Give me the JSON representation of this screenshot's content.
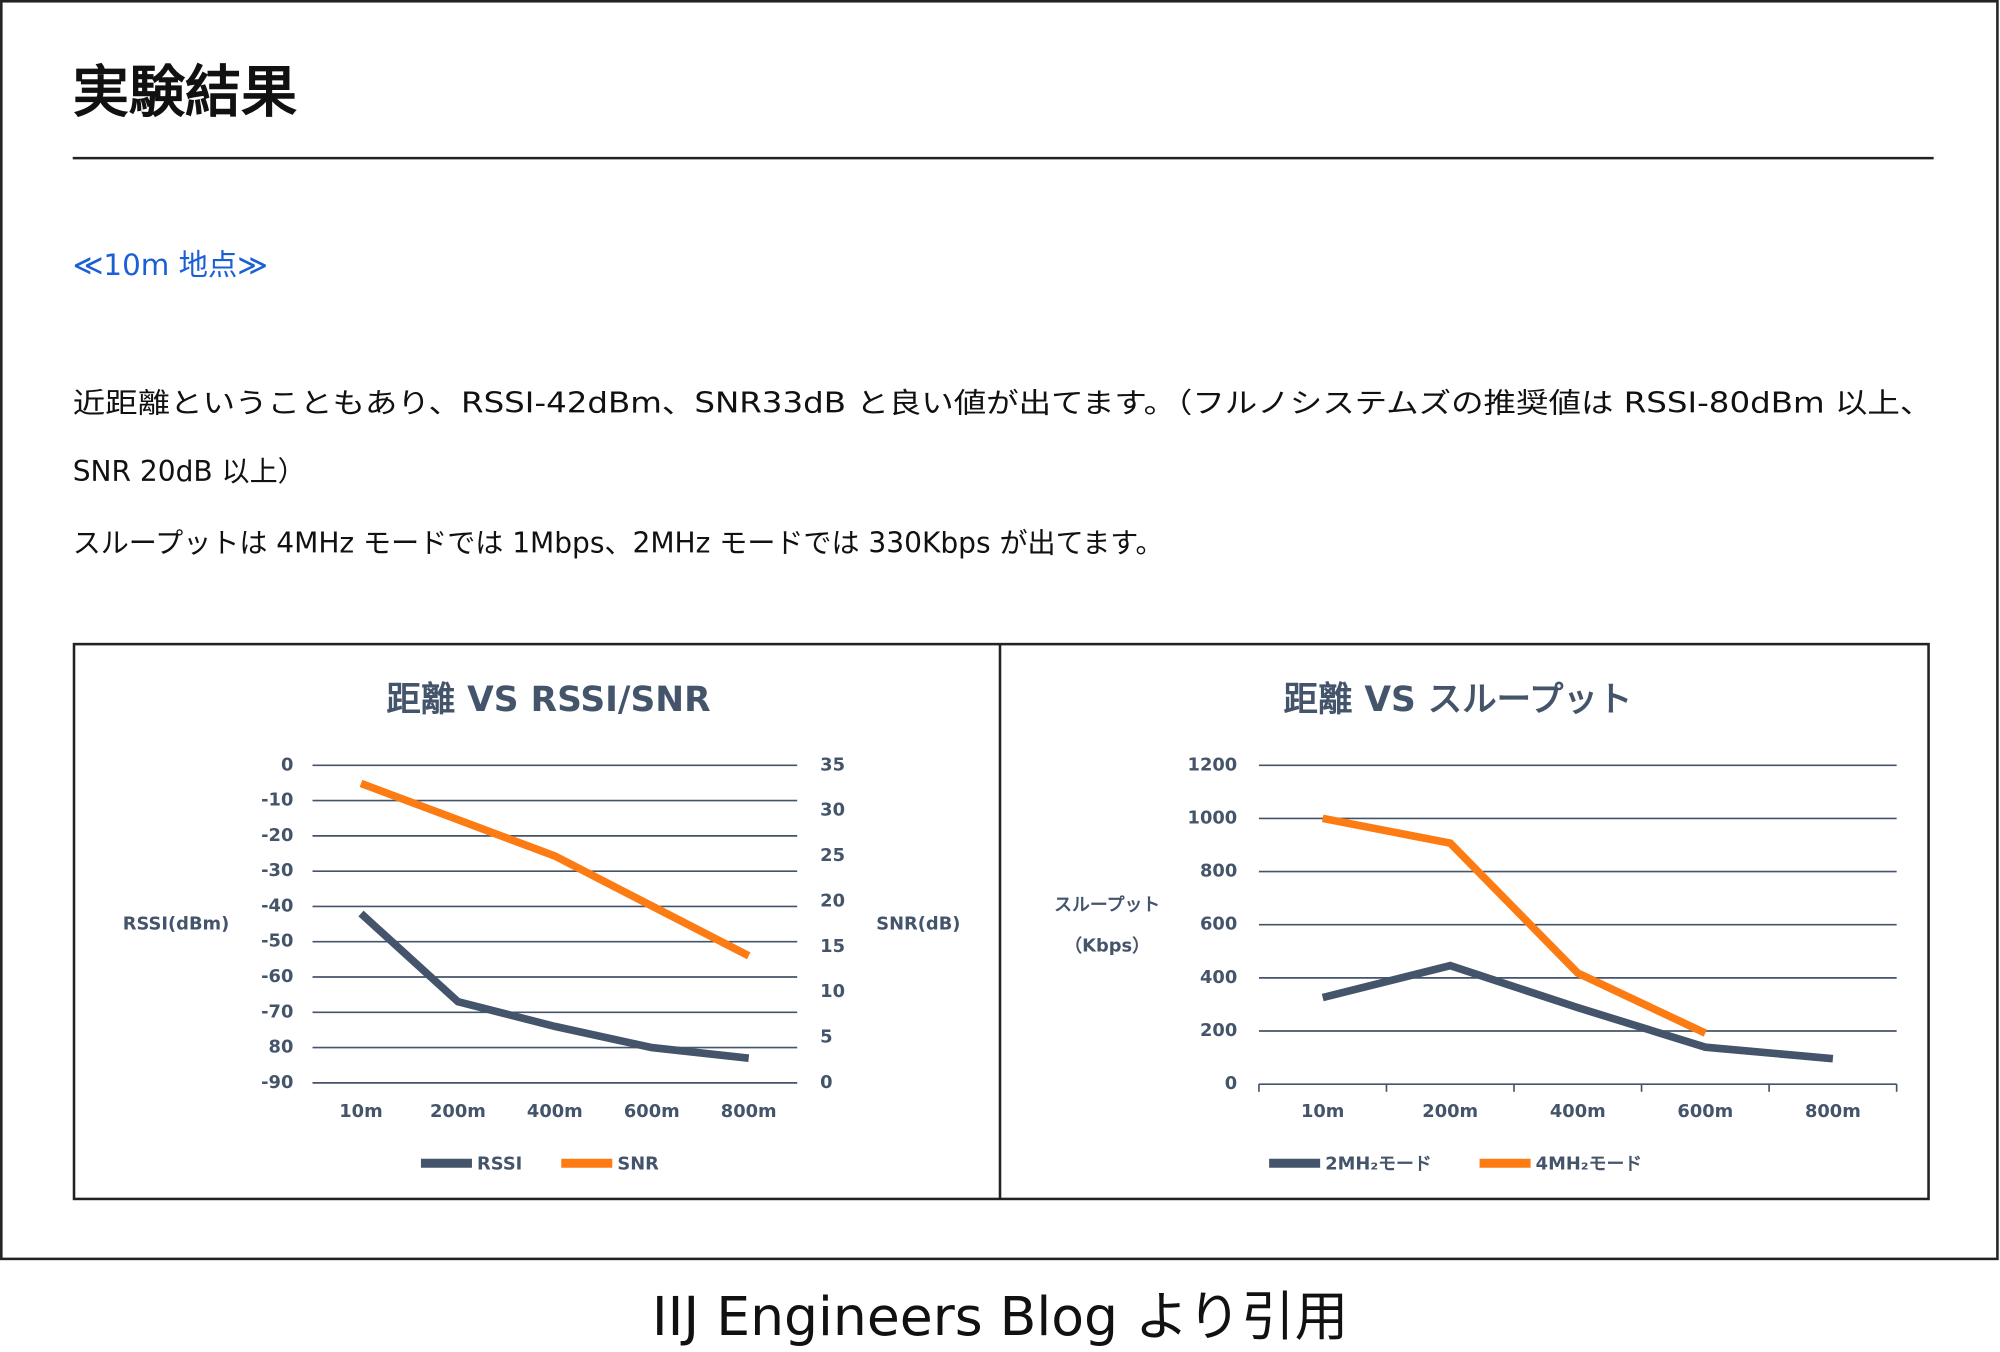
{
  "document": {
    "title": "実験結果",
    "subtitle": "≪10m 地点≫",
    "lines": [
      "近距離ということもあり、RSSI-42dBm、SNR33dB と良い値が出てます。（フルノシステムズの推奨値は RSSI-80dBm 以上、",
      "SNR 20dB 以上）",
      "スループットは 4MHz モードでは 1Mbps、2MHz モードでは 330Kbps が出てます。"
    ],
    "caption": "IIJ Engineers Blog より引用"
  },
  "chart_data": [
    {
      "type": "line",
      "title": "距離 VS RSSI/SNR",
      "ylabel": [
        "RSSI(dBm)"
      ],
      "y2label": "SNR(dB)",
      "categories": [
        "10m",
        "200m",
        "400m",
        "600m",
        "800m"
      ],
      "ylim": [
        -90,
        0
      ],
      "yticks": [
        0,
        -10,
        -20,
        -30,
        -40,
        -50,
        -60,
        -70,
        {
          "value": -80,
          "label": "80"
        },
        -90
      ],
      "y2lim": [
        0,
        35
      ],
      "y2ticks": [
        35,
        30,
        25,
        20,
        15,
        10,
        5,
        0
      ],
      "grid": true,
      "series": [
        {
          "name": "RSSI",
          "color": "#44546a",
          "values": [
            -42,
            -67,
            -74,
            -80,
            -83
          ]
        },
        {
          "name": "SNR",
          "color": "#fd7b13",
          "axis": "y2",
          "values": [
            33,
            29,
            25,
            19.5,
            14
          ]
        }
      ]
    },
    {
      "type": "line",
      "title": "距離 VS スループット",
      "ylabel": [
        "スループット",
        "（Kbps）"
      ],
      "categories": [
        "10m",
        "200m",
        "400m",
        "600m",
        "800m"
      ],
      "ylim": [
        0,
        1200
      ],
      "yticks": [
        1200,
        1000,
        800,
        600,
        400,
        200,
        0
      ],
      "grid": true,
      "series": [
        {
          "name": "2MH₂モード",
          "color": "#44546a",
          "values": [
            326,
            446,
            288,
            139,
            96
          ]
        },
        {
          "name": "4MH₂モード",
          "color": "#fd7b13",
          "values": [
            1000,
            907,
            418,
            192,
            null
          ]
        }
      ]
    }
  ]
}
